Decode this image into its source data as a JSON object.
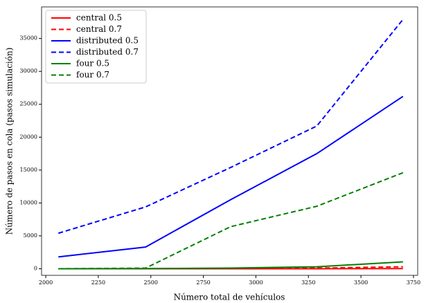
{
  "chart_data": {
    "type": "line",
    "xlabel": "Número total de vehículos",
    "ylabel": "Número de pasos en cola (pasos simulación)",
    "x": [
      2060,
      2475,
      2880,
      3290,
      3700
    ],
    "series": [
      {
        "name": "central 0.5",
        "color": "#ff0000",
        "dash": false,
        "values": [
          0,
          0,
          0,
          0,
          30
        ]
      },
      {
        "name": "central 0.7",
        "color": "#ff0000",
        "dash": true,
        "values": [
          0,
          10,
          50,
          100,
          300
        ]
      },
      {
        "name": "distributed 0.5",
        "color": "#0000ff",
        "dash": false,
        "values": [
          1800,
          3300,
          10500,
          17500,
          26200
        ]
      },
      {
        "name": "distributed 0.7",
        "color": "#0000ff",
        "dash": true,
        "values": [
          5400,
          9400,
          15400,
          21700,
          37900
        ]
      },
      {
        "name": "four 0.5",
        "color": "#008000",
        "dash": false,
        "values": [
          0,
          20,
          100,
          300,
          1050
        ]
      },
      {
        "name": "four 0.7",
        "color": "#008000",
        "dash": true,
        "values": [
          0,
          100,
          6400,
          9500,
          14600
        ]
      }
    ],
    "xlim": [
      1980,
      3770
    ],
    "xticks": [
      2000,
      2250,
      2500,
      2750,
      3000,
      3250,
      3500,
      3750
    ],
    "ylim": [
      -1000,
      39800
    ],
    "yticks": [
      0,
      5000,
      10000,
      15000,
      20000,
      25000,
      30000,
      35000
    ],
    "legend": "upper-left"
  }
}
